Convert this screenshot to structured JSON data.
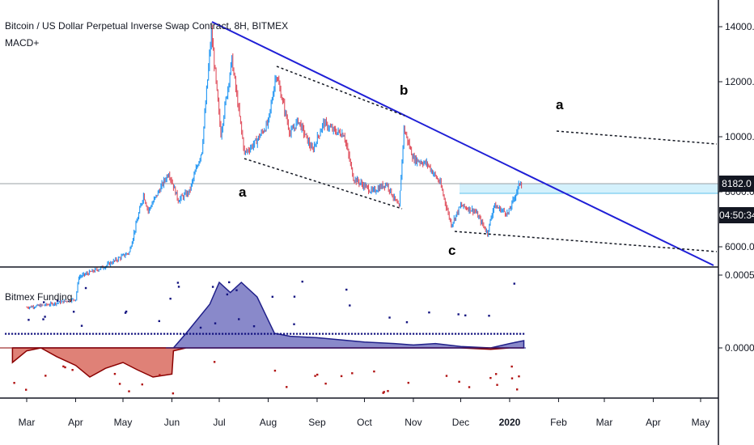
{
  "header": {
    "title": "Bitcoin / US Dollar Perpetual Inverse Swap Contract, 8H, BITMEX",
    "indicator": "MACD+"
  },
  "funding_pane": {
    "title": "Bitmex Funding"
  },
  "price_badges": {
    "last_price": "8182.0",
    "countdown": "04:50:34"
  },
  "wave_labels": {
    "a1": "a",
    "b": "b",
    "c": "c",
    "a2": "a"
  },
  "colors": {
    "trendline": "#1f1fd6",
    "bull": "#2196f3",
    "bear": "#e05260",
    "funding_pos": "#6b6bbd",
    "funding_neg": "#d96b5f",
    "dot_pos": "#131380",
    "dot_neg": "#b01010",
    "zone": "#a8dff5"
  },
  "chart_data": [
    {
      "type": "line",
      "title": "Bitcoin / US Dollar Perpetual Inverse Swap Contract, 8H, BITMEX",
      "xlabel": "",
      "ylabel": "",
      "x_ticks": [
        "Mar",
        "Apr",
        "May",
        "Jun",
        "Jul",
        "Aug",
        "Sep",
        "Oct",
        "Nov",
        "Dec",
        "2020",
        "Feb",
        "Mar",
        "Apr",
        "May"
      ],
      "y_ticks": [
        6000,
        8000,
        10000,
        12000,
        14000
      ],
      "ylim": [
        4800,
        14200
      ],
      "last_price": 8182.0,
      "series": [
        {
          "values": [
            [
              "2019-03-01",
              3800
            ],
            [
              "2019-03-15",
              3900
            ],
            [
              "2019-04-01",
              4100
            ],
            [
              "2019-04-03",
              4900
            ],
            [
              "2019-04-20",
              5300
            ],
            [
              "2019-05-05",
              5800
            ],
            [
              "2019-05-14",
              7900
            ],
            [
              "2019-05-17",
              7300
            ],
            [
              "2019-05-30",
              8700
            ],
            [
              "2019-06-05",
              7700
            ],
            [
              "2019-06-12",
              8000
            ],
            [
              "2019-06-20",
              9500
            ],
            [
              "2019-06-26",
              13800
            ],
            [
              "2019-07-02",
              10100
            ],
            [
              "2019-07-09",
              12800
            ],
            [
              "2019-07-17",
              9400
            ],
            [
              "2019-07-24",
              9800
            ],
            [
              "2019-08-01",
              10500
            ],
            [
              "2019-08-06",
              12300
            ],
            [
              "2019-08-15",
              10100
            ],
            [
              "2019-08-20",
              10600
            ],
            [
              "2019-08-29",
              9500
            ],
            [
              "2019-09-05",
              10500
            ],
            [
              "2019-09-12",
              10200
            ],
            [
              "2019-09-18",
              10100
            ],
            [
              "2019-09-24",
              8500
            ],
            [
              "2019-10-06",
              8000
            ],
            [
              "2019-10-15",
              8300
            ],
            [
              "2019-10-23",
              7400
            ],
            [
              "2019-10-26",
              10300
            ],
            [
              "2019-11-01",
              9200
            ],
            [
              "2019-11-10",
              9000
            ],
            [
              "2019-11-18",
              8300
            ],
            [
              "2019-11-25",
              6800
            ],
            [
              "2019-12-01",
              7500
            ],
            [
              "2019-12-10",
              7300
            ],
            [
              "2019-12-18",
              6500
            ],
            [
              "2019-12-22",
              7500
            ],
            [
              "2019-12-31",
              7200
            ],
            [
              "2020-01-08",
              8400
            ],
            [
              "2020-01-09",
              8182
            ]
          ]
        }
      ],
      "annotations": [
        "a",
        "b",
        "c",
        "a"
      ]
    },
    {
      "type": "area",
      "title": "Bitmex Funding",
      "y_ticks": [
        0.0,
        0.0005
      ],
      "ylim": [
        -0.0002,
        0.00055
      ],
      "series": [
        {
          "name": "",
          "values": [
            [
              "2019-02-20",
              -0.0001
            ],
            [
              "2019-03-01",
              -2e-05
            ],
            [
              "2019-03-10",
              0.0
            ],
            [
              "2019-03-20",
              -6e-05
            ],
            [
              "2019-04-01",
              -0.00012
            ],
            [
              "2019-04-10",
              -0.0002
            ],
            [
              "2019-04-20",
              -0.00014
            ],
            [
              "2019-05-01",
              -0.0001
            ],
            [
              "2019-05-10",
              -0.00015
            ],
            [
              "2019-05-20",
              -0.0002
            ],
            [
              "2019-06-01",
              -0.00018
            ],
            [
              "2019-06-02",
              -2e-05
            ],
            [
              "2019-06-10",
              0.0001
            ],
            [
              "2019-06-25",
              0.0003
            ],
            [
              "2019-07-01",
              0.00045
            ],
            [
              "2019-07-08",
              0.00038
            ],
            [
              "2019-07-15",
              0.00045
            ],
            [
              "2019-07-25",
              0.00035
            ],
            [
              "2019-08-05",
              0.0001
            ],
            [
              "2019-08-15",
              8e-05
            ],
            [
              "2019-09-01",
              7e-05
            ],
            [
              "2019-10-01",
              4e-05
            ],
            [
              "2019-10-20",
              3e-05
            ],
            [
              "2019-11-01",
              2e-05
            ],
            [
              "2019-11-15",
              3e-05
            ],
            [
              "2019-12-01",
              1e-05
            ],
            [
              "2019-12-20",
              -1e-05
            ],
            [
              "2020-01-01",
              3e-05
            ],
            [
              "2020-01-10",
              5e-05
            ]
          ]
        }
      ]
    }
  ]
}
